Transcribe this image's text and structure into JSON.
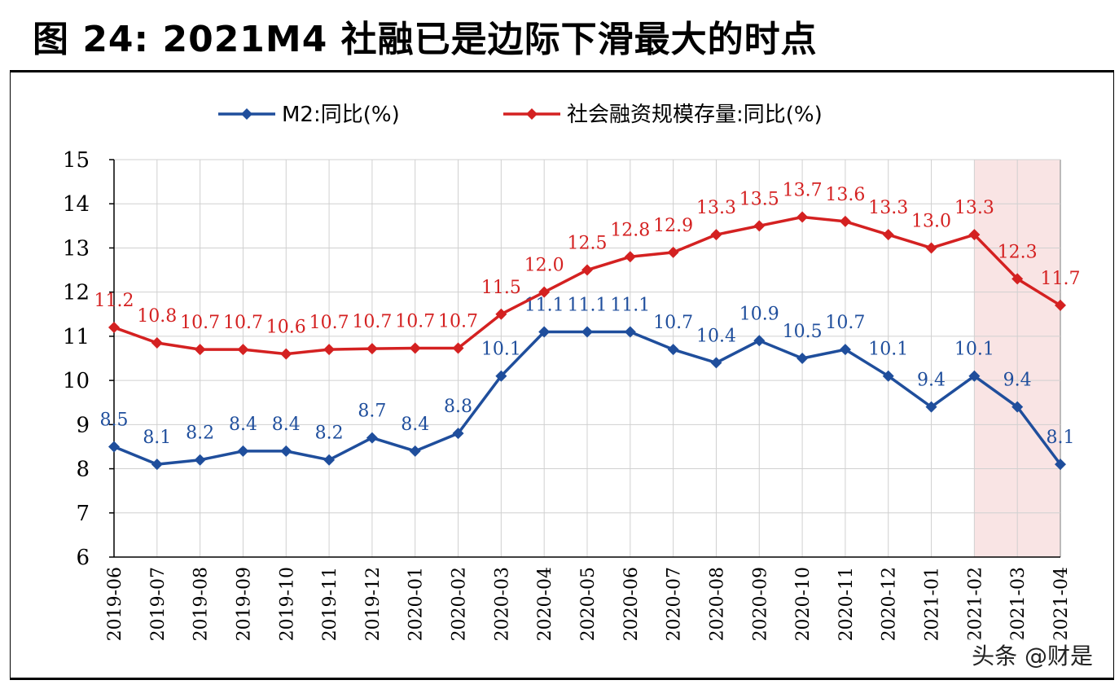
{
  "title": "图 24:  2021M4 社融已是边际下滑最大的时点",
  "watermark": "头条 @财是",
  "chart_data": {
    "type": "line",
    "categories": [
      "2019-06",
      "2019-07",
      "2019-08",
      "2019-09",
      "2019-10",
      "2019-11",
      "2019-12",
      "2020-01",
      "2020-02",
      "2020-03",
      "2020-04",
      "2020-05",
      "2020-06",
      "2020-07",
      "2020-08",
      "2020-09",
      "2020-10",
      "2020-11",
      "2020-12",
      "2021-01",
      "2021-02",
      "2021-03",
      "2021-04"
    ],
    "series": [
      {
        "name": "M2:同比(%)",
        "color": "#1f4e9c",
        "values": [
          8.5,
          8.1,
          8.2,
          8.4,
          8.4,
          8.2,
          8.7,
          8.4,
          8.8,
          10.1,
          11.1,
          11.1,
          11.1,
          10.7,
          10.4,
          10.9,
          10.5,
          10.7,
          10.1,
          9.4,
          10.1,
          9.4,
          8.1
        ],
        "labels": [
          "8.5",
          "8.1",
          "8.2",
          "8.4",
          "8.4",
          "8.2",
          "8.7",
          "8.4",
          "8.8",
          "10.1",
          "11.1",
          "11.1",
          "11.1",
          "10.7",
          "10.4",
          "10.9",
          "10.5",
          "10.7",
          "10.1",
          "9.4",
          "10.1",
          "9.4",
          "8.1"
        ]
      },
      {
        "name": "社会融资规模存量:同比(%)",
        "color": "#d42121",
        "values": [
          11.2,
          10.85,
          10.7,
          10.7,
          10.6,
          10.7,
          10.72,
          10.73,
          10.73,
          11.5,
          12.0,
          12.5,
          12.8,
          12.9,
          13.3,
          13.5,
          13.7,
          13.6,
          13.3,
          13.0,
          13.3,
          12.3,
          11.7
        ],
        "labels": [
          "11.2",
          "10.8",
          "10.7",
          "10.7",
          "10.6",
          "10.7",
          "10.7",
          "10.7",
          "10.7",
          "11.5",
          "12.0",
          "12.5",
          "12.8",
          "12.9",
          "13.3",
          "13.5",
          "13.7",
          "13.6",
          "13.3",
          "13.0",
          "13.3",
          "12.3",
          "11.7"
        ]
      }
    ],
    "ylim": [
      6,
      15
    ],
    "yticks": [
      6,
      7,
      8,
      9,
      10,
      11,
      12,
      13,
      14,
      15
    ],
    "grid": true,
    "legend": "top-center",
    "highlight_range": [
      "2021-02",
      "2021-04"
    ],
    "highlight_color": "#f9e4e4"
  }
}
